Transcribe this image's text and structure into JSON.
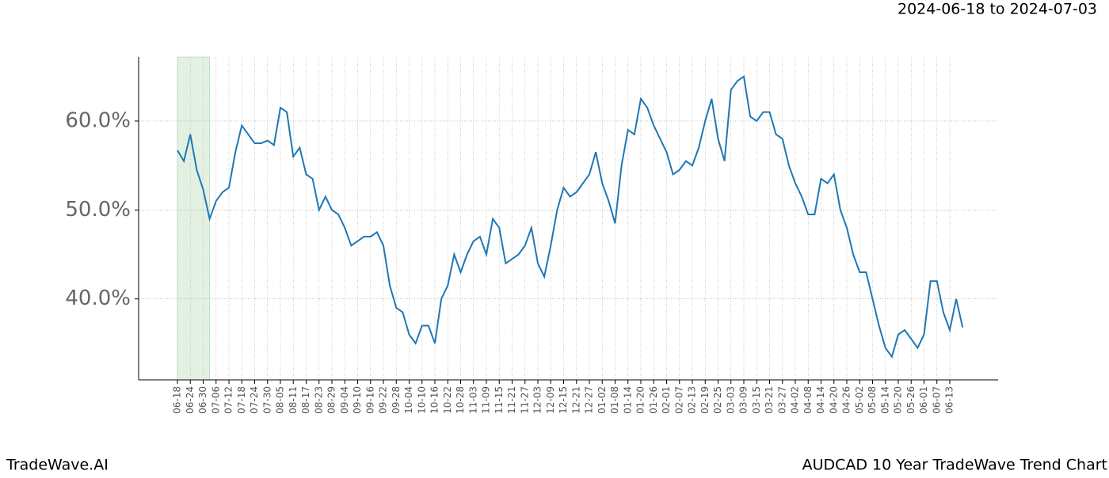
{
  "header": {
    "date_range": "2024-06-18 to 2024-07-03"
  },
  "footer": {
    "brand": "TradeWave.AI",
    "chart_name": "AUDCAD 10 Year TradeWave Trend Chart"
  },
  "chart_data": {
    "type": "line",
    "categories": [
      "06-18",
      null,
      "06-24",
      null,
      "06-30",
      null,
      "07-06",
      null,
      "07-12",
      null,
      "07-18",
      null,
      "07-24",
      null,
      "07-30",
      null,
      "08-05",
      null,
      "08-11",
      null,
      "08-17",
      null,
      "08-23",
      null,
      "08-29",
      null,
      "09-04",
      null,
      "09-10",
      null,
      "09-16",
      null,
      "09-22",
      null,
      "09-28",
      null,
      "10-04",
      null,
      "10-10",
      null,
      "10-16",
      null,
      "10-22",
      null,
      "10-28",
      null,
      "11-03",
      null,
      "11-09",
      null,
      "11-15",
      null,
      "11-21",
      null,
      "11-27",
      null,
      "12-03",
      null,
      "12-09",
      null,
      "12-15",
      null,
      "12-21",
      null,
      "12-27",
      null,
      "01-02",
      null,
      "01-08",
      null,
      "01-14",
      null,
      "01-20",
      null,
      "01-26",
      null,
      "02-01",
      null,
      "02-07",
      null,
      "02-13",
      null,
      "02-19",
      null,
      "02-25",
      null,
      "03-03",
      null,
      "03-09",
      null,
      "03-15",
      null,
      "03-21",
      null,
      "03-27",
      null,
      "04-02",
      null,
      "04-08",
      null,
      "04-14",
      null,
      "04-20",
      null,
      "04-26",
      null,
      "05-02",
      null,
      "05-08",
      null,
      "05-14",
      null,
      "05-20",
      null,
      "05-26",
      null,
      "06-01",
      null,
      "06-07",
      null,
      "06-13",
      null,
      null
    ],
    "series": [
      {
        "name": "AUDCAD",
        "color": "#1f77b4",
        "values": [
          56.7,
          55.5,
          58.5,
          54.5,
          52.3,
          49,
          51,
          52,
          52.5,
          56.5,
          59.5,
          58.5,
          57.5,
          57.5,
          57.8,
          57.3,
          61.5,
          61,
          56,
          57,
          54,
          53.5,
          50,
          51.5,
          50,
          49.5,
          48,
          46,
          46.5,
          47,
          47,
          47.5,
          46,
          41.5,
          39,
          38.5,
          36,
          35,
          37,
          37,
          35,
          40,
          41.5,
          45,
          43,
          45,
          46.5,
          47,
          45,
          49,
          48,
          44,
          44.5,
          45,
          46,
          48,
          44,
          42.5,
          46,
          50,
          52.5,
          51.5,
          52,
          53,
          54,
          56.5,
          53,
          51,
          48.5,
          55,
          59,
          58.5,
          62.5,
          61.5,
          59.5,
          58,
          56.5,
          54,
          54.5,
          55.5,
          55,
          57,
          60,
          62.5,
          58,
          55.5,
          63.5,
          64.5,
          65,
          60.5,
          60,
          61,
          61,
          58.5,
          58,
          55,
          53,
          51.5,
          49.5,
          49.5,
          53.5,
          53,
          54,
          50,
          48,
          45,
          43,
          43,
          40,
          37,
          34.5,
          33.5,
          36,
          36.5,
          35.5,
          34.5,
          36,
          42,
          42,
          38.5,
          36.5,
          40,
          36.8
        ]
      }
    ],
    "ylim": [
      30.9,
      67.2
    ],
    "yticks": [
      {
        "value": 40,
        "label": "40.0%"
      },
      {
        "value": 50,
        "label": "50.0%"
      },
      {
        "value": 60,
        "label": "60.0%"
      }
    ],
    "grid": true,
    "shade": {
      "from": 0,
      "to": 5,
      "color": "#e3f1e3"
    }
  }
}
